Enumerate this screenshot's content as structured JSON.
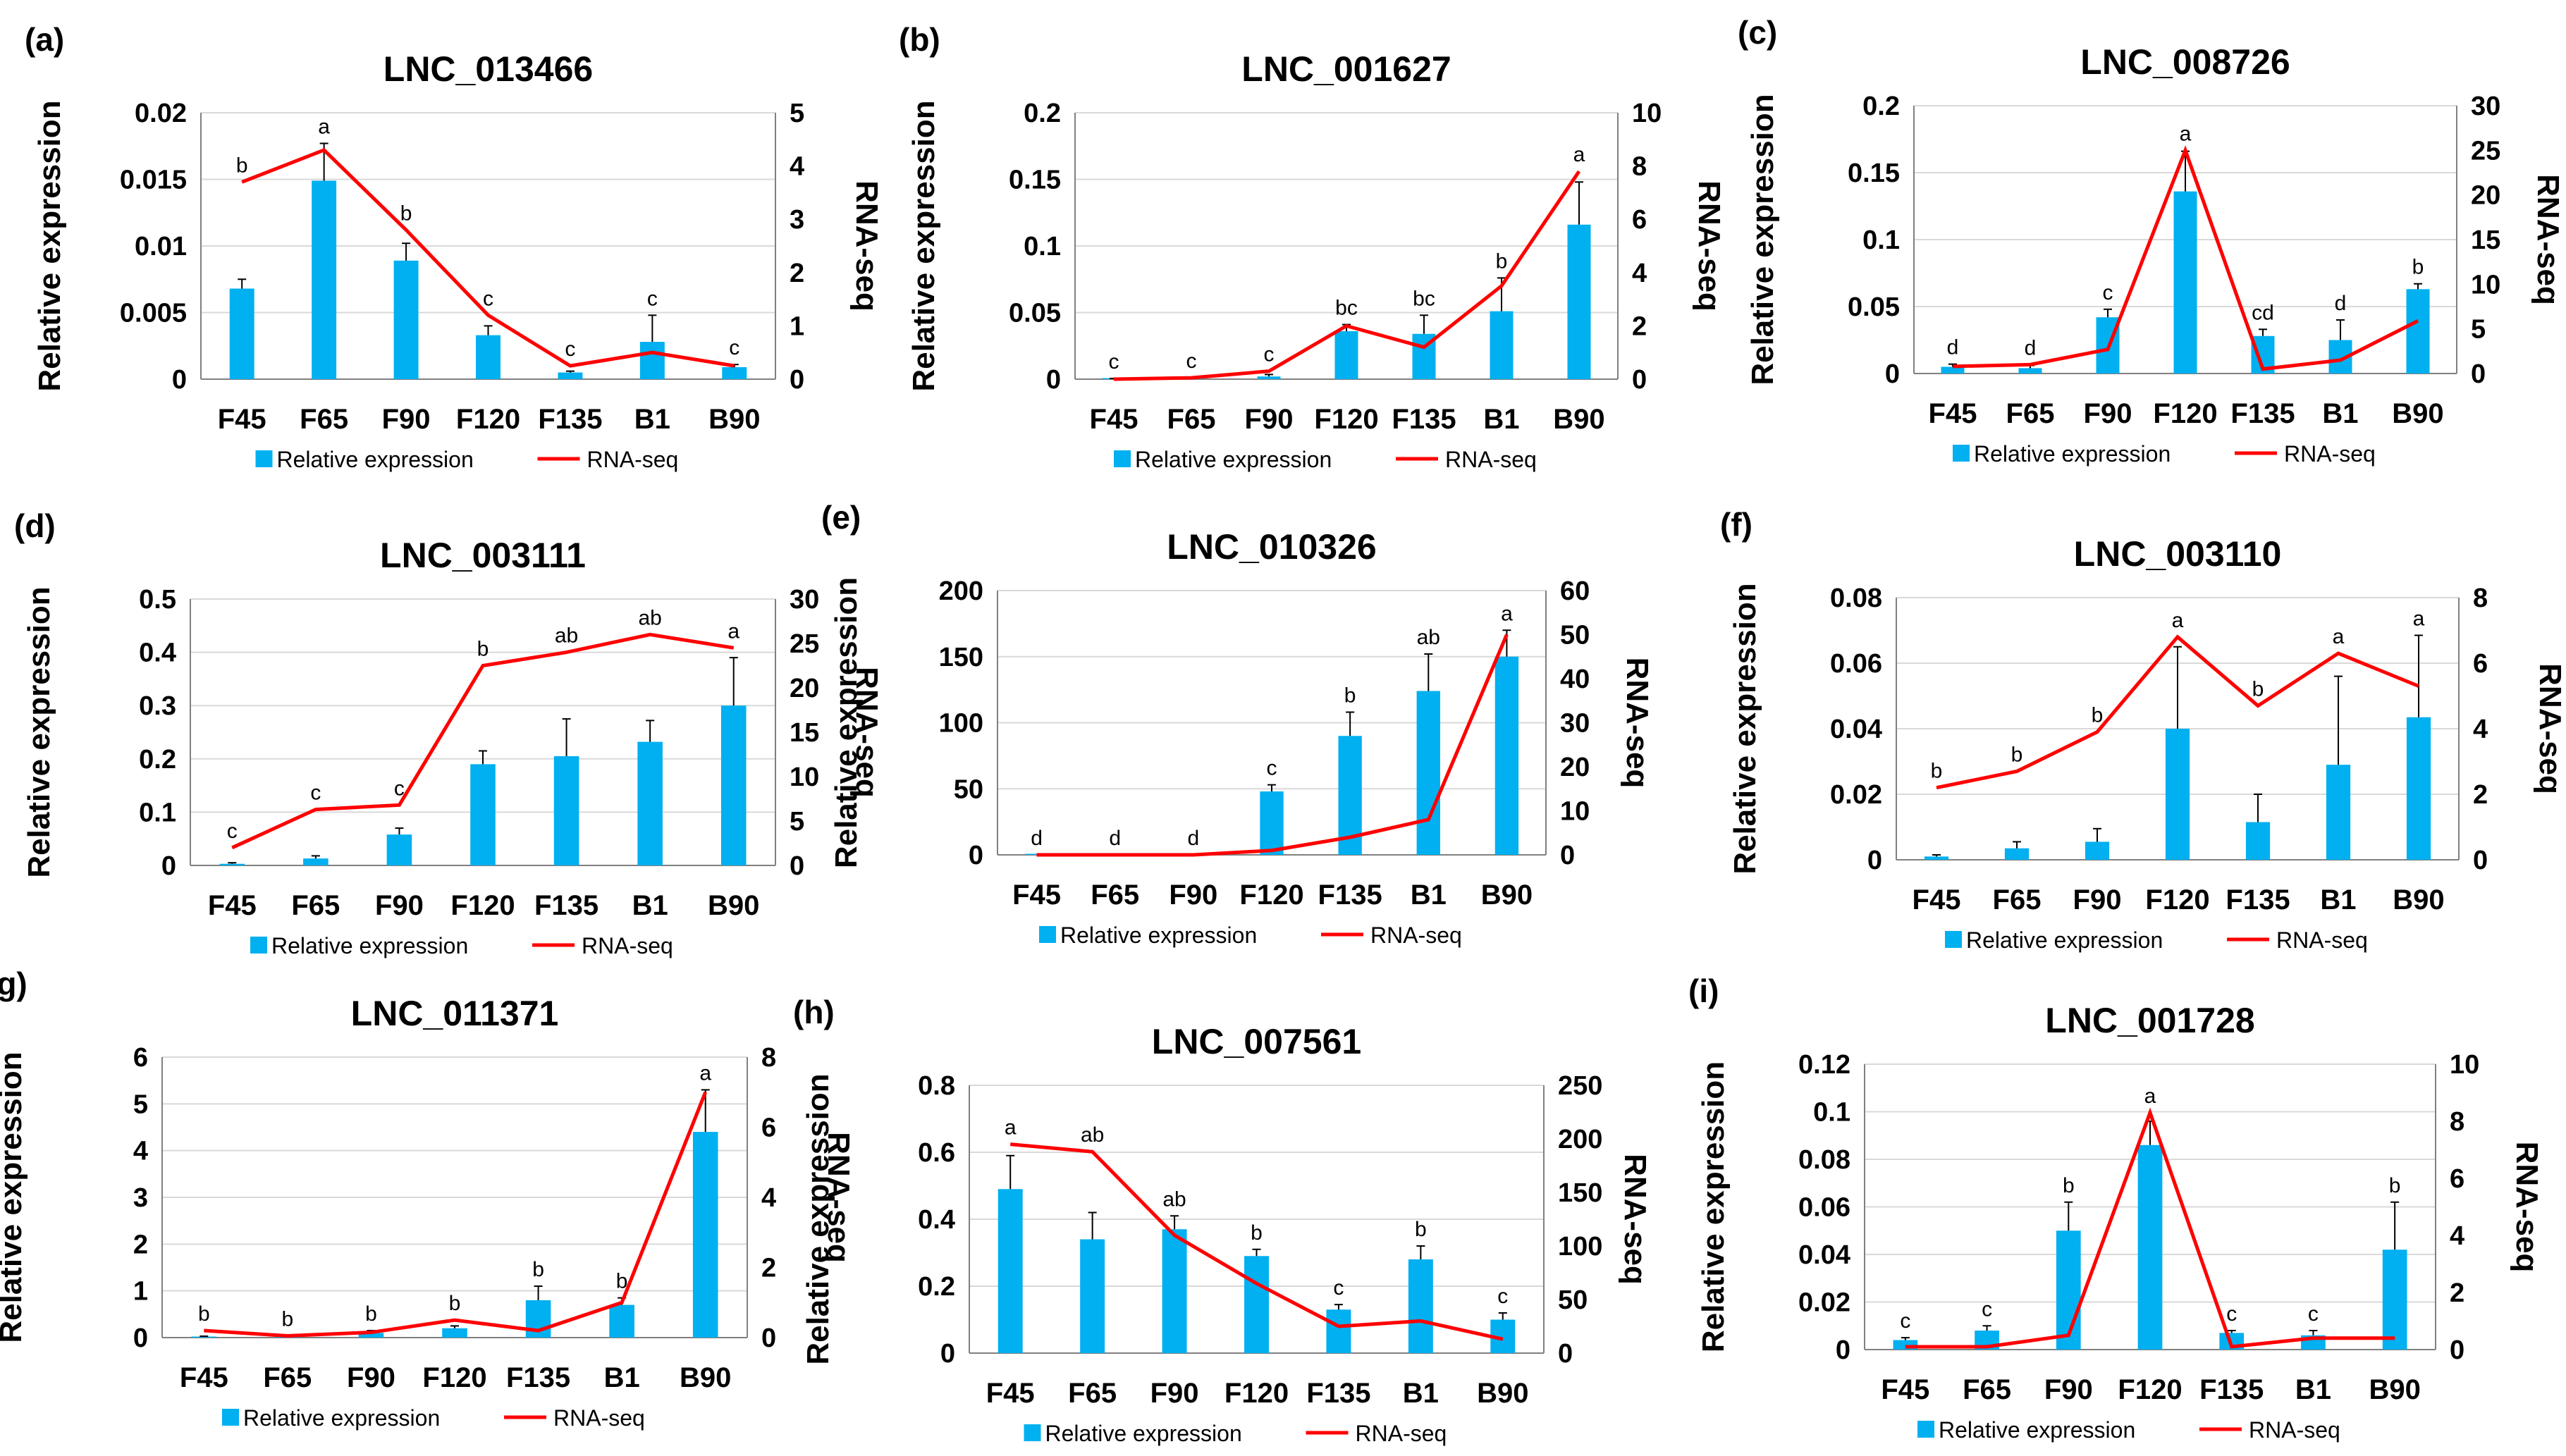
{
  "figure": {
    "categories": [
      "F45",
      "F65",
      "F90",
      "F120",
      "F135",
      "B1",
      "B90"
    ],
    "colors": {
      "bar": "#00b0f0",
      "line": "#ff0000",
      "axis": "#808080",
      "grid": "#d9d9d9"
    },
    "legend": {
      "bar": "Relative expression",
      "line": "RNA-seq"
    }
  },
  "chart_data": [
    {
      "label": "(a)",
      "type": "bar+line",
      "title": "LNC_013466",
      "ylabel": "Relative expression",
      "y2label": "RNA-seq",
      "categories": [
        "F45",
        "F65",
        "F90",
        "F120",
        "F135",
        "B1",
        "B90"
      ],
      "ylim": [
        0,
        0.02
      ],
      "yticks": [
        "0",
        "0.005",
        "0.01",
        "0.015",
        "0.02"
      ],
      "y2lim": [
        0,
        5
      ],
      "y2ticks": [
        "0",
        "1",
        "2",
        "3",
        "4",
        "5"
      ],
      "series": [
        {
          "name": "Relative expression",
          "values": [
            0.0068,
            0.0149,
            0.0089,
            0.0033,
            0.0005,
            0.0028,
            0.0009
          ],
          "errors": [
            0.0007,
            0.0028,
            0.0013,
            0.0007,
            0.0001,
            0.002,
            0.0002
          ]
        },
        {
          "name": "RNA-seq",
          "values": [
            3.7,
            4.3,
            2.8,
            1.2,
            0.25,
            0.5,
            0.25
          ]
        }
      ],
      "significance": [
        "b",
        "a",
        "b",
        "c",
        "c",
        "c",
        "c"
      ]
    },
    {
      "label": "(b)",
      "type": "bar+line",
      "title": "LNC_001627",
      "ylabel": "Relative expression",
      "y2label": "RNA-seq",
      "categories": [
        "F45",
        "F65",
        "F90",
        "F120",
        "F135",
        "B1",
        "B90"
      ],
      "ylim": [
        0,
        0.2
      ],
      "yticks": [
        "0",
        "0.05",
        "0.1",
        "0.15",
        "0.2"
      ],
      "y2lim": [
        0,
        10
      ],
      "y2ticks": [
        "0",
        "2",
        "4",
        "6",
        "8",
        "10"
      ],
      "series": [
        {
          "name": "Relative expression",
          "values": [
            0.0003,
            0.0004,
            0.002,
            0.036,
            0.034,
            0.051,
            0.116
          ],
          "errors": [
            0.0002,
            0.0002,
            0.0015,
            0.005,
            0.014,
            0.025,
            0.032
          ]
        },
        {
          "name": "RNA-seq",
          "values": [
            0,
            0.05,
            0.3,
            2.0,
            1.2,
            3.5,
            7.8
          ]
        }
      ],
      "significance": [
        "c",
        "c",
        "c",
        "bc",
        "bc",
        "b",
        "a"
      ]
    },
    {
      "label": "(c)",
      "type": "bar+line",
      "title": "LNC_008726",
      "ylabel": "Relative expression",
      "y2label": "RNA-seq",
      "categories": [
        "F45",
        "F65",
        "F90",
        "F120",
        "F135",
        "B1",
        "B90"
      ],
      "ylim": [
        0,
        0.2
      ],
      "yticks": [
        "0",
        "0.05",
        "0.1",
        "0.15",
        "0.2"
      ],
      "y2lim": [
        0,
        30
      ],
      "y2ticks": [
        "0",
        "5",
        "10",
        "15",
        "20",
        "25",
        "30"
      ],
      "series": [
        {
          "name": "Relative expression",
          "values": [
            0.005,
            0.004,
            0.042,
            0.136,
            0.028,
            0.025,
            0.063
          ],
          "errors": [
            0.002,
            0.002,
            0.006,
            0.03,
            0.005,
            0.015,
            0.004
          ]
        },
        {
          "name": "RNA-seq",
          "values": [
            0.8,
            1.0,
            2.7,
            25.0,
            0.5,
            1.5,
            5.9
          ]
        }
      ],
      "significance": [
        "d",
        "d",
        "c",
        "a",
        "cd",
        "d",
        "b"
      ]
    },
    {
      "label": "(d)",
      "type": "bar+line",
      "title": "LNC_003111",
      "ylabel": "Relative expression",
      "y2label": "RNA-seq",
      "categories": [
        "F45",
        "F65",
        "F90",
        "F120",
        "F135",
        "B1",
        "B90"
      ],
      "ylim": [
        0,
        0.5
      ],
      "yticks": [
        "0",
        "0.1",
        "0.2",
        "0.3",
        "0.4",
        "0.5"
      ],
      "y2lim": [
        0,
        30
      ],
      "y2ticks": [
        "0",
        "5",
        "10",
        "15",
        "20",
        "25",
        "30"
      ],
      "series": [
        {
          "name": "Relative expression",
          "values": [
            0.003,
            0.013,
            0.058,
            0.19,
            0.205,
            0.232,
            0.3
          ],
          "errors": [
            0.002,
            0.005,
            0.012,
            0.025,
            0.07,
            0.04,
            0.09
          ]
        },
        {
          "name": "RNA-seq",
          "values": [
            2.0,
            6.3,
            6.8,
            22.5,
            24.0,
            26.0,
            24.5
          ]
        }
      ],
      "significance": [
        "c",
        "c",
        "c",
        "b",
        "ab",
        "ab",
        "a"
      ]
    },
    {
      "label": "(e)",
      "type": "bar+line",
      "title": "LNC_010326",
      "ylabel": "Relative expression",
      "y2label": "RNA-seq",
      "categories": [
        "F45",
        "F65",
        "F90",
        "F120",
        "F135",
        "B1",
        "B90"
      ],
      "ylim": [
        0,
        200
      ],
      "yticks": [
        "0",
        "50",
        "100",
        "150",
        "200"
      ],
      "y2lim": [
        0,
        60
      ],
      "y2ticks": [
        "0",
        "10",
        "20",
        "30",
        "40",
        "50",
        "60"
      ],
      "series": [
        {
          "name": "Relative expression",
          "values": [
            0,
            0,
            0,
            48,
            90,
            124,
            150
          ],
          "errors": [
            0,
            0,
            0,
            5,
            18,
            28,
            20
          ]
        },
        {
          "name": "RNA-seq",
          "values": [
            0,
            0,
            0,
            1.0,
            4.0,
            8.0,
            50.0
          ]
        }
      ],
      "significance": [
        "d",
        "d",
        "d",
        "c",
        "b",
        "ab",
        "a"
      ]
    },
    {
      "label": "(f)",
      "type": "bar+line",
      "title": "LNC_003110",
      "ylabel": "Relative expression",
      "y2label": "RNA-seq",
      "categories": [
        "F45",
        "F65",
        "F90",
        "F120",
        "F135",
        "B1",
        "B90"
      ],
      "ylim": [
        0,
        0.08
      ],
      "yticks": [
        "0",
        "0.02",
        "0.04",
        "0.06",
        "0.08"
      ],
      "y2lim": [
        0,
        8
      ],
      "y2ticks": [
        "0",
        "2",
        "4",
        "6",
        "8"
      ],
      "series": [
        {
          "name": "Relative expression",
          "values": [
            0.001,
            0.0035,
            0.0055,
            0.04,
            0.0115,
            0.029,
            0.0435
          ],
          "errors": [
            0.0005,
            0.002,
            0.004,
            0.025,
            0.0085,
            0.027,
            0.025
          ]
        },
        {
          "name": "RNA-seq",
          "values": [
            2.2,
            2.7,
            3.9,
            6.8,
            4.7,
            6.3,
            5.3
          ]
        }
      ],
      "significance": [
        "b",
        "b",
        "b",
        "a",
        "b",
        "a",
        "a"
      ]
    },
    {
      "label": "(g)",
      "type": "bar+line",
      "title": "LNC_011371",
      "ylabel": "Relative expression",
      "y2label": "RNA-seq",
      "categories": [
        "F45",
        "F65",
        "F90",
        "F120",
        "F135",
        "B1",
        "B90"
      ],
      "ylim": [
        0,
        6
      ],
      "yticks": [
        "0",
        "1",
        "2",
        "3",
        "4",
        "5",
        "6"
      ],
      "y2lim": [
        0,
        8
      ],
      "y2ticks": [
        "0",
        "2",
        "4",
        "6",
        "8"
      ],
      "series": [
        {
          "name": "Relative expression",
          "values": [
            0.02,
            0.02,
            0.1,
            0.2,
            0.8,
            0.7,
            4.4
          ],
          "errors": [
            0.01,
            0.01,
            0.05,
            0.05,
            0.3,
            0.15,
            0.9
          ]
        },
        {
          "name": "RNA-seq",
          "values": [
            0.2,
            0.05,
            0.15,
            0.5,
            0.2,
            1.0,
            7.0
          ]
        }
      ],
      "significance": [
        "b",
        "b",
        "b",
        "b",
        "b",
        "b",
        "a"
      ]
    },
    {
      "label": "(h)",
      "type": "bar+line",
      "title": "LNC_007561",
      "ylabel": "Relative expression",
      "y2label": "RNA-seq",
      "categories": [
        "F45",
        "F65",
        "F90",
        "F120",
        "F135",
        "B1",
        "B90"
      ],
      "ylim": [
        0,
        0.8
      ],
      "yticks": [
        "0",
        "0.2",
        "0.4",
        "0.6",
        "0.8"
      ],
      "y2lim": [
        0,
        250
      ],
      "y2ticks": [
        "0",
        "50",
        "100",
        "150",
        "200",
        "250"
      ],
      "series": [
        {
          "name": "Relative expression",
          "values": [
            0.49,
            0.34,
            0.37,
            0.29,
            0.13,
            0.28,
            0.1
          ],
          "errors": [
            0.1,
            0.08,
            0.04,
            0.02,
            0.015,
            0.04,
            0.02
          ]
        },
        {
          "name": "RNA-seq",
          "values": [
            195,
            188,
            110,
            65,
            25,
            30,
            13
          ]
        }
      ],
      "significance": [
        "a",
        "ab",
        "ab",
        "b",
        "c",
        "b",
        "c"
      ]
    },
    {
      "label": "(i)",
      "type": "bar+line",
      "title": "LNC_001728",
      "ylabel": "Relative expression",
      "y2label": "RNA-seq",
      "categories": [
        "F45",
        "F65",
        "F90",
        "F120",
        "F135",
        "B1",
        "B90"
      ],
      "ylim": [
        0,
        0.12
      ],
      "yticks": [
        "0",
        "0.02",
        "0.04",
        "0.06",
        "0.08",
        "0.1",
        "0.12"
      ],
      "y2lim": [
        0,
        10
      ],
      "y2ticks": [
        "0",
        "2",
        "4",
        "6",
        "8",
        "10"
      ],
      "series": [
        {
          "name": "Relative expression",
          "values": [
            0.004,
            0.008,
            0.05,
            0.086,
            0.007,
            0.006,
            0.042
          ],
          "errors": [
            0.001,
            0.002,
            0.012,
            0.01,
            0.001,
            0.002,
            0.02
          ]
        },
        {
          "name": "RNA-seq",
          "values": [
            0.1,
            0.1,
            0.5,
            8.3,
            0.1,
            0.4,
            0.4
          ]
        }
      ],
      "significance": [
        "c",
        "c",
        "b",
        "a",
        "c",
        "c",
        "b"
      ]
    }
  ]
}
